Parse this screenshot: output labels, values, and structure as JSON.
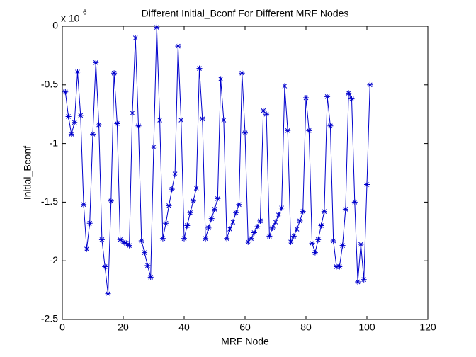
{
  "chart_data": {
    "type": "line",
    "title": "Different Initial_Bconf For Different MRF Nodes",
    "xlabel": "MRF Node",
    "ylabel": "Initial_Bconf",
    "y_exponent": {
      "base": "x 10",
      "power": "6"
    },
    "xlim": [
      0,
      120
    ],
    "xticks": [
      0,
      20,
      40,
      60,
      80,
      100,
      120
    ],
    "ylim": [
      -2.5,
      0
    ],
    "yticks": [
      -2.5,
      -2,
      -1.5,
      -1,
      -0.5,
      0
    ],
    "grid": false,
    "x": [
      1,
      2,
      3,
      4,
      5,
      6,
      7,
      8,
      9,
      10,
      11,
      12,
      13,
      14,
      15,
      16,
      17,
      18,
      19,
      20,
      21,
      22,
      23,
      24,
      25,
      26,
      27,
      28,
      29,
      30,
      31,
      32,
      33,
      34,
      35,
      36,
      37,
      38,
      39,
      40,
      41,
      42,
      43,
      44,
      45,
      46,
      47,
      48,
      49,
      50,
      51,
      52,
      53,
      54,
      55,
      56,
      57,
      58,
      59,
      60,
      61,
      62,
      63,
      64,
      65,
      66,
      67,
      68,
      69,
      70,
      71,
      72,
      73,
      74,
      75,
      76,
      77,
      78,
      79,
      80,
      81,
      82,
      83,
      84,
      85,
      86,
      87,
      88,
      89,
      90,
      91,
      92,
      93,
      94,
      95,
      96,
      97,
      98,
      99,
      100,
      101
    ],
    "series": [
      {
        "name": "Initial_Bconf",
        "color": "#0000cc",
        "marker": "asterisk",
        "values": [
          -0.56,
          -0.77,
          -0.92,
          -0.82,
          -0.39,
          -0.76,
          -1.52,
          -1.9,
          -1.68,
          -0.92,
          -0.31,
          -0.84,
          -1.82,
          -2.05,
          -2.28,
          -1.49,
          -0.4,
          -0.83,
          -1.82,
          -1.84,
          -1.85,
          -1.87,
          -0.74,
          -0.1,
          -0.85,
          -1.83,
          -1.93,
          -2.04,
          -2.14,
          -1.03,
          -0.01,
          -0.8,
          -1.81,
          -1.68,
          -1.53,
          -1.39,
          -1.26,
          -0.17,
          -0.8,
          -1.81,
          -1.7,
          -1.59,
          -1.49,
          -1.38,
          -0.36,
          -0.79,
          -1.81,
          -1.72,
          -1.64,
          -1.56,
          -1.47,
          -0.45,
          -0.8,
          -1.81,
          -1.73,
          -1.67,
          -1.59,
          -1.52,
          -0.4,
          -0.91,
          -1.84,
          -1.81,
          -1.76,
          -1.71,
          -1.66,
          -0.72,
          -0.75,
          -1.79,
          -1.72,
          -1.67,
          -1.61,
          -1.55,
          -0.51,
          -0.89,
          -1.84,
          -1.79,
          -1.73,
          -1.66,
          -1.58,
          -0.61,
          -0.89,
          -1.85,
          -1.93,
          -1.82,
          -1.7,
          -1.58,
          -0.6,
          -0.85,
          -1.83,
          -2.05,
          -2.05,
          -1.87,
          -1.56,
          -0.57,
          -0.62,
          -1.5,
          -2.18,
          -1.86,
          -2.16,
          -1.35,
          -0.5
        ]
      }
    ]
  }
}
